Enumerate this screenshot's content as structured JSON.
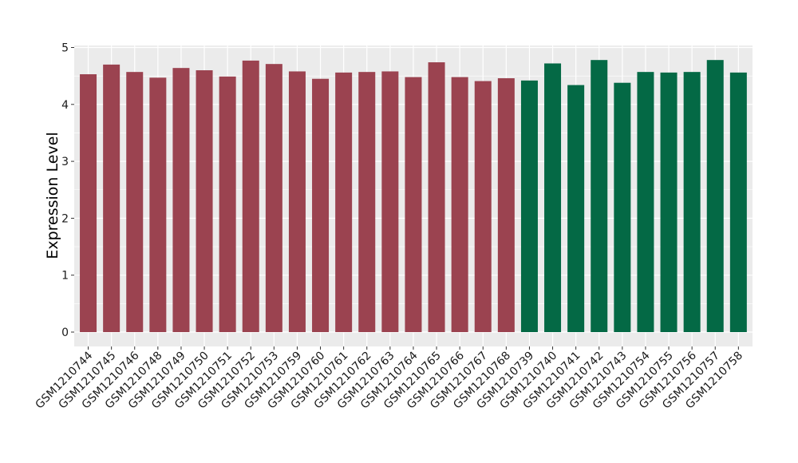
{
  "chart_data": {
    "type": "bar",
    "title": "",
    "xlabel": "",
    "ylabel": "Expression Level",
    "ylim": [
      0,
      5
    ],
    "yticks": [
      0,
      1,
      2,
      3,
      4,
      5
    ],
    "grid": true,
    "legend": "none",
    "colors": {
      "group1": "#9b4350",
      "group2": "#046945",
      "panel_bg": "#ebebeb",
      "grid": "#ffffff"
    },
    "categories": [
      "GSM1210744",
      "GSM1210745",
      "GSM1210746",
      "GSM1210748",
      "GSM1210749",
      "GSM1210750",
      "GSM1210751",
      "GSM1210752",
      "GSM1210753",
      "GSM1210759",
      "GSM1210760",
      "GSM1210761",
      "GSM1210762",
      "GSM1210763",
      "GSM1210764",
      "GSM1210765",
      "GSM1210766",
      "GSM1210767",
      "GSM1210768",
      "GSM1210739",
      "GSM1210740",
      "GSM1210741",
      "GSM1210742",
      "GSM1210743",
      "GSM1210754",
      "GSM1210755",
      "GSM1210756",
      "GSM1210757",
      "GSM1210758"
    ],
    "values": [
      4.53,
      4.7,
      4.57,
      4.47,
      4.64,
      4.6,
      4.49,
      4.77,
      4.71,
      4.58,
      4.45,
      4.56,
      4.57,
      4.58,
      4.48,
      4.74,
      4.48,
      4.41,
      4.46,
      4.42,
      4.72,
      4.34,
      4.78,
      4.38,
      4.57,
      4.56,
      4.57,
      4.78,
      4.56
    ],
    "groups": [
      1,
      1,
      1,
      1,
      1,
      1,
      1,
      1,
      1,
      1,
      1,
      1,
      1,
      1,
      1,
      1,
      1,
      1,
      1,
      2,
      2,
      2,
      2,
      2,
      2,
      2,
      2,
      2,
      2
    ]
  }
}
